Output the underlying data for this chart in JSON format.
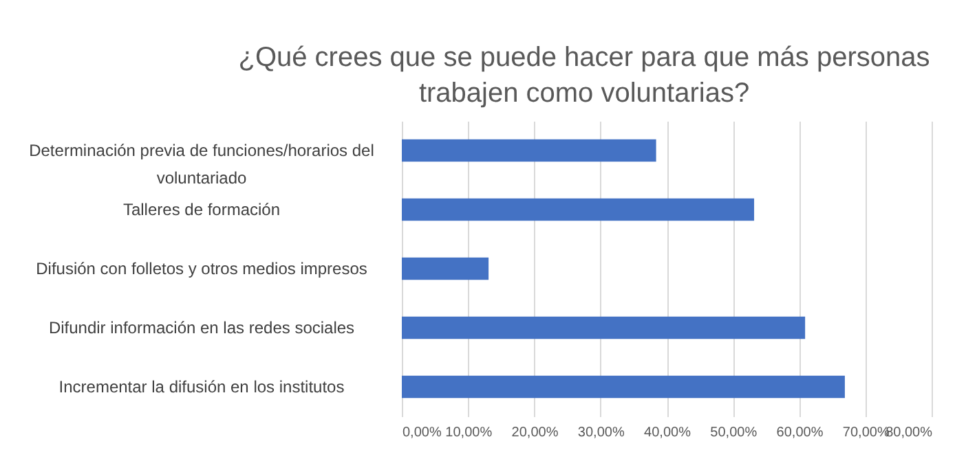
{
  "chart_data": {
    "type": "bar",
    "orientation": "horizontal",
    "title": "¿Qué crees que se puede hacer para que más personas trabajen como voluntarias?",
    "categories": [
      "Determinación previa de funciones/horarios del voluntariado",
      "Talleres de formación",
      "Difusión con folletos y otros medios impresos",
      "Difundir información en las redes sociales",
      "Incrementar la difusión en los institutos"
    ],
    "values": [
      38.4,
      53.2,
      13.1,
      60.9,
      66.9
    ],
    "color": "#4472c4",
    "xlim": [
      0,
      80
    ],
    "xticks": [
      {
        "value": 0,
        "label": "0,00%"
      },
      {
        "value": 10,
        "label": "10,00%"
      },
      {
        "value": 20,
        "label": "20,00%"
      },
      {
        "value": 30,
        "label": "30,00%"
      },
      {
        "value": 40,
        "label": "40,00%"
      },
      {
        "value": 50,
        "label": "50,00%"
      },
      {
        "value": 60,
        "label": "60,00%"
      },
      {
        "value": 70,
        "label": "70,00%"
      },
      {
        "value": 80,
        "label": "80,00%"
      }
    ],
    "grid": "x"
  }
}
